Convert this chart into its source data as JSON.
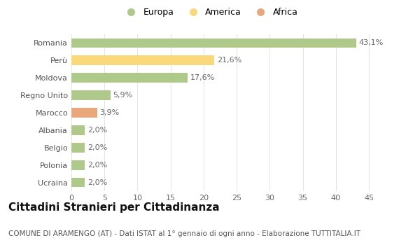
{
  "categories": [
    "Romania",
    "Perù",
    "Moldova",
    "Regno Unito",
    "Marocco",
    "Albania",
    "Belgio",
    "Polonia",
    "Ucraina"
  ],
  "values": [
    43.1,
    21.6,
    17.6,
    5.9,
    3.9,
    2.0,
    2.0,
    2.0,
    2.0
  ],
  "labels": [
    "43,1%",
    "21,6%",
    "17,6%",
    "5,9%",
    "3,9%",
    "2,0%",
    "2,0%",
    "2,0%",
    "2,0%"
  ],
  "colors": [
    "#aec98a",
    "#f9d97c",
    "#aec98a",
    "#aec98a",
    "#e8a87c",
    "#aec98a",
    "#aec98a",
    "#aec98a",
    "#aec98a"
  ],
  "legend": [
    {
      "label": "Europa",
      "color": "#aec98a"
    },
    {
      "label": "America",
      "color": "#f9d97c"
    },
    {
      "label": "Africa",
      "color": "#e8a87c"
    }
  ],
  "title": "Cittadini Stranieri per Cittadinanza",
  "subtitle": "COMUNE DI ARAMENGO (AT) - Dati ISTAT al 1° gennaio di ogni anno - Elaborazione TUTTITALIA.IT",
  "xlim": [
    0,
    47
  ],
  "xticks": [
    0,
    5,
    10,
    15,
    20,
    25,
    30,
    35,
    40,
    45
  ],
  "background_color": "#ffffff",
  "grid_color": "#e5e5e5",
  "bar_height": 0.55,
  "label_fontsize": 8,
  "tick_fontsize": 8,
  "title_fontsize": 11,
  "subtitle_fontsize": 7.5
}
